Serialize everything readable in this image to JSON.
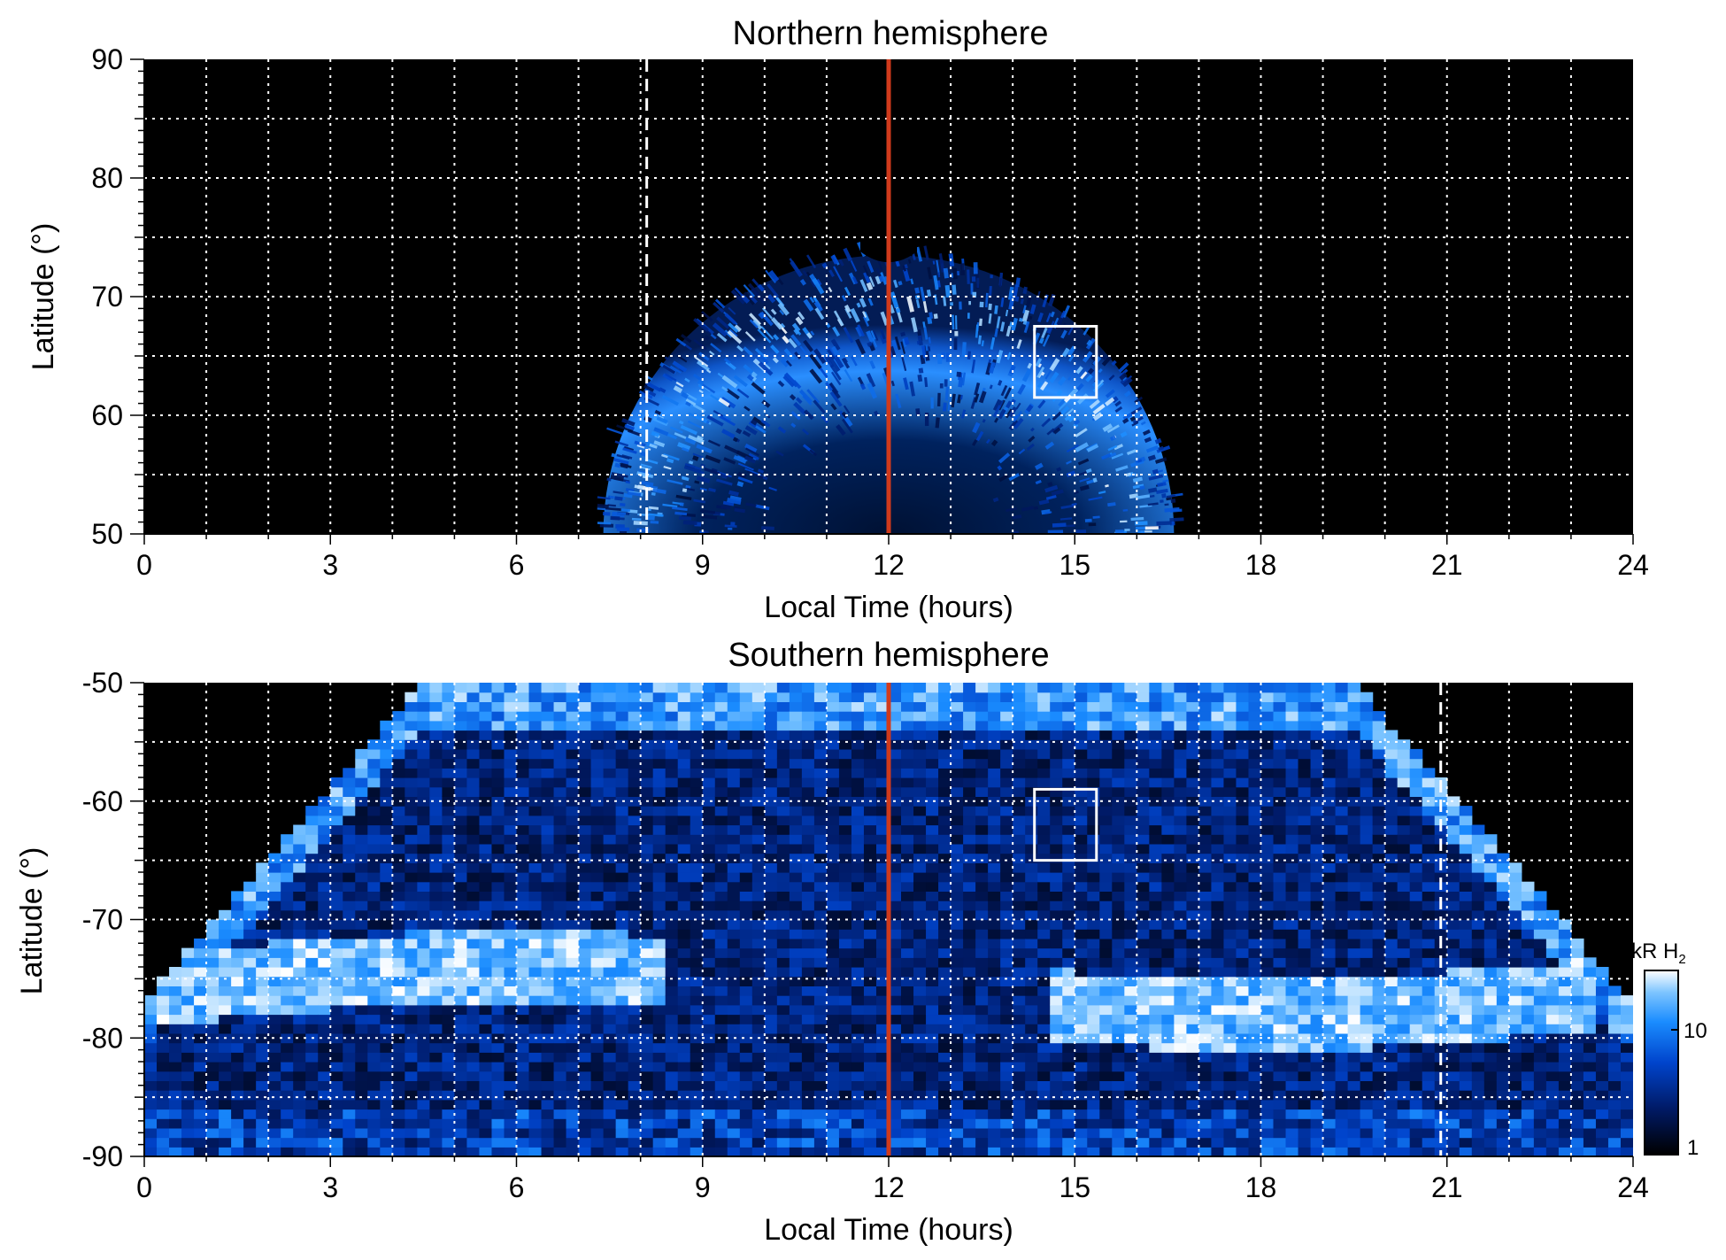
{
  "chart_data": [
    {
      "type": "heatmap",
      "title": "Northern hemisphere",
      "xlabel": "Local Time (hours)",
      "ylabel": "Latitude (°)",
      "xlim": [
        0,
        24
      ],
      "ylim": [
        50,
        90
      ],
      "xticks": [
        "0",
        "3",
        "6",
        "9",
        "12",
        "15",
        "18",
        "21",
        "24"
      ],
      "yticks": [
        "50",
        "60",
        "70",
        "80",
        "90"
      ],
      "grid": "dotted white, every 1 h and 5°",
      "background": "#000000",
      "reference_line": {
        "x": 12,
        "color": "#d03a1c"
      },
      "dashed_line": {
        "x": 8.1,
        "y_range": [
          50,
          90
        ]
      },
      "box": {
        "x": [
          14.35,
          15.35
        ],
        "y": [
          61.5,
          67.5
        ]
      },
      "emission_region": {
        "x": [
          7.5,
          16.6
        ],
        "y": [
          50,
          74
        ]
      },
      "auroral_oval": {
        "band_latitude_deg": 64,
        "center_x": 12,
        "half_width_h": 4.6,
        "cusp_max_lat": 73.5
      }
    },
    {
      "type": "heatmap",
      "title": "Southern hemisphere",
      "xlabel": "Local Time (hours)",
      "ylabel": "Latitude (°)",
      "xlim": [
        0,
        24
      ],
      "ylim": [
        -90,
        -50
      ],
      "xticks": [
        "0",
        "3",
        "6",
        "9",
        "12",
        "15",
        "18",
        "21",
        "24"
      ],
      "yticks": [
        "-50",
        "-60",
        "-70",
        "-80",
        "-90"
      ],
      "grid": "dotted white, every 1 h and 5°",
      "background": "#000000",
      "reference_line": {
        "x": 12,
        "color": "#d03a1c"
      },
      "dashed_line": {
        "x": 20.9,
        "y_range": [
          -90,
          -50
        ]
      },
      "box": {
        "x": [
          14.35,
          15.35
        ],
        "y": [
          -65,
          -59
        ]
      },
      "emission_region": {
        "x": [
          0,
          24
        ],
        "y": [
          -90,
          -50
        ]
      },
      "auroral_oval": {
        "band_latitude_deg": -76,
        "bright_segments_h": [
          [
            2.5,
            8.5
          ],
          [
            15,
            20
          ],
          [
            21,
            23.5
          ]
        ]
      }
    }
  ],
  "colorbar": {
    "label_prefix": "kR H",
    "label_sub": "2",
    "ticks": [
      "10",
      "1"
    ],
    "scale": "log",
    "range": [
      1,
      30
    ],
    "colors": [
      "#000000",
      "#001a66",
      "#0044cc",
      "#1a8cff",
      "#7cc4ff",
      "#ffffff"
    ]
  }
}
